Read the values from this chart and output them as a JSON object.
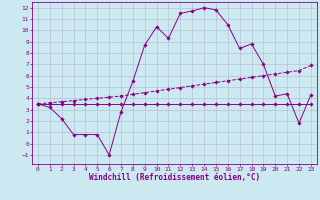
{
  "xlabel": "Windchill (Refroidissement éolien,°C)",
  "background_color": "#cce8f0",
  "grid_color": "#b0b8cc",
  "line_color": "#880088",
  "x_values": [
    0,
    1,
    2,
    3,
    4,
    5,
    6,
    7,
    8,
    9,
    10,
    11,
    12,
    13,
    14,
    15,
    16,
    17,
    18,
    19,
    20,
    21,
    22,
    23
  ],
  "flat_line": [
    3.5,
    3.5,
    3.5,
    3.5,
    3.5,
    3.5,
    3.5,
    3.5,
    3.5,
    3.5,
    3.5,
    3.5,
    3.5,
    3.5,
    3.5,
    3.5,
    3.5,
    3.5,
    3.5,
    3.5,
    3.5,
    3.5,
    3.5,
    3.5
  ],
  "linear_line": [
    3.5,
    3.6,
    3.7,
    3.8,
    3.9,
    4.0,
    4.1,
    4.2,
    4.35,
    4.5,
    4.65,
    4.8,
    4.95,
    5.1,
    5.25,
    5.4,
    5.55,
    5.7,
    5.85,
    6.0,
    6.15,
    6.3,
    6.45,
    6.9
  ],
  "windchill_line": [
    3.5,
    3.2,
    2.2,
    0.8,
    0.8,
    0.8,
    -1.0,
    2.8,
    5.5,
    8.7,
    10.3,
    9.3,
    11.5,
    11.7,
    12.0,
    11.8,
    10.5,
    8.4,
    8.8,
    7.0,
    4.2,
    4.4,
    1.8,
    4.3
  ],
  "ylim": [
    -1.8,
    12.5
  ],
  "xlim": [
    -0.5,
    23.5
  ],
  "yticks": [
    -1,
    0,
    1,
    2,
    3,
    4,
    5,
    6,
    7,
    8,
    9,
    10,
    11,
    12
  ],
  "xticks": [
    0,
    1,
    2,
    3,
    4,
    5,
    6,
    7,
    8,
    9,
    10,
    11,
    12,
    13,
    14,
    15,
    16,
    17,
    18,
    19,
    20,
    21,
    22,
    23
  ],
  "tick_fontsize": 4.5,
  "xlabel_fontsize": 5.5
}
